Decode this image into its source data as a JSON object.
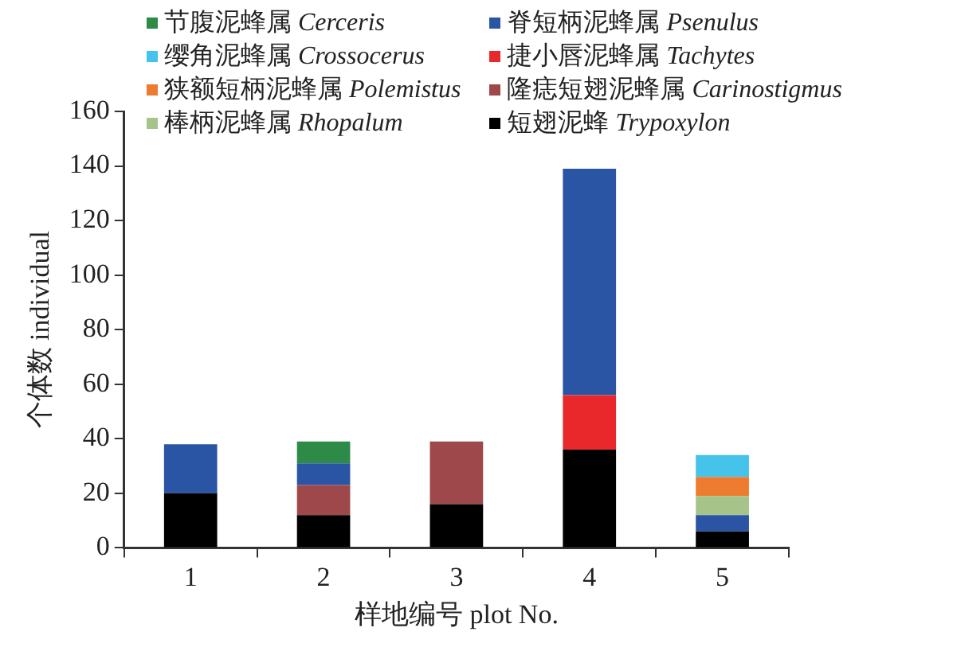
{
  "chart_data": {
    "type": "bar",
    "stacked": true,
    "xlabel": "样地编号 plot No.",
    "ylabel": "个体数 individual",
    "categories": [
      "1",
      "2",
      "3",
      "4",
      "5"
    ],
    "series": [
      {
        "name": "短翅泥蜂 Trypoxylon",
        "color": "#000000",
        "values": [
          20,
          12,
          16,
          36,
          6
        ]
      },
      {
        "name": "隆痣短翅泥蜂属 Carinostigmus",
        "color": "#9e484b",
        "values": [
          null,
          11,
          23,
          null,
          null
        ]
      },
      {
        "name": "捷小唇泥蜂属 Tachytes",
        "color": "#e8282a",
        "values": [
          null,
          null,
          null,
          20,
          null
        ]
      },
      {
        "name": "脊短柄泥蜂属 Psenulus",
        "color": "#2a55a5",
        "values": [
          18,
          8,
          null,
          83,
          6
        ]
      },
      {
        "name": "棒柄泥蜂属 Rhopalum",
        "color": "#a6c38a",
        "values": [
          null,
          null,
          null,
          null,
          7
        ]
      },
      {
        "name": "狭额短柄泥蜂属 Polemistus",
        "color": "#ed7c31",
        "values": [
          null,
          null,
          null,
          null,
          7
        ]
      },
      {
        "name": "缨角泥蜂属 Crossocerus",
        "color": "#45c3ea",
        "values": [
          null,
          null,
          null,
          null,
          8
        ]
      },
      {
        "name": "节腹泥蜂属 Cerceris",
        "color": "#2e8b47",
        "values": [
          null,
          8,
          null,
          null,
          null
        ]
      }
    ],
    "ylim": [
      0,
      160
    ],
    "yticks": [
      0,
      20,
      40,
      60,
      80,
      100,
      120,
      140,
      160
    ],
    "grid": false,
    "legend": "top"
  }
}
